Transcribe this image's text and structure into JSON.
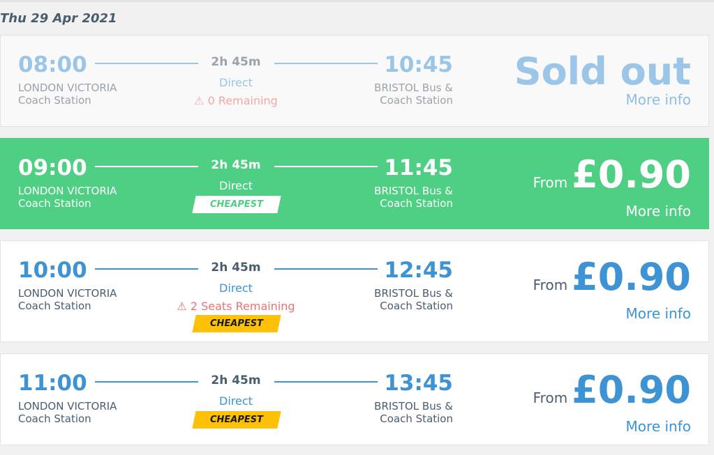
{
  "date": "Thu 29 Apr 2021",
  "journeys": [
    {
      "depart": "08:00",
      "origin": "LONDON VICTORIA Coach Station",
      "duration": "2h 45m",
      "type": "Direct",
      "remaining": "0 Remaining",
      "badge": null,
      "arrive": "10:45",
      "destination": "BRISTOL Bus & Coach Station",
      "from": "",
      "price": "Sold out",
      "more": "More info",
      "state": "sold-out"
    },
    {
      "depart": "09:00",
      "origin": "LONDON VICTORIA Coach Station",
      "duration": "2h 45m",
      "type": "Direct",
      "remaining": null,
      "badge": "CHEAPEST",
      "arrive": "11:45",
      "destination": "BRISTOL Bus & Coach Station",
      "from": "From",
      "price": "£0.90",
      "more": "More info",
      "state": "selected"
    },
    {
      "depart": "10:00",
      "origin": "LONDON VICTORIA Coach Station",
      "duration": "2h 45m",
      "type": "Direct",
      "remaining": "2 Seats Remaining",
      "badge": "CHEAPEST",
      "arrive": "12:45",
      "destination": "BRISTOL Bus & Coach Station",
      "from": "From",
      "price": "£0.90",
      "more": "More info",
      "state": "available"
    },
    {
      "depart": "11:00",
      "origin": "LONDON VICTORIA Coach Station",
      "duration": "2h 45m",
      "type": "Direct",
      "remaining": null,
      "badge": "CHEAPEST",
      "arrive": "13:45",
      "destination": "BRISTOL Bus & Coach Station",
      "from": "From",
      "price": "£0.90",
      "more": "More info",
      "state": "available"
    }
  ],
  "colors": {
    "accent": "#3d93d4",
    "selected": "#4fcf84",
    "badge": "#ffc107",
    "warning": "#f07070"
  }
}
